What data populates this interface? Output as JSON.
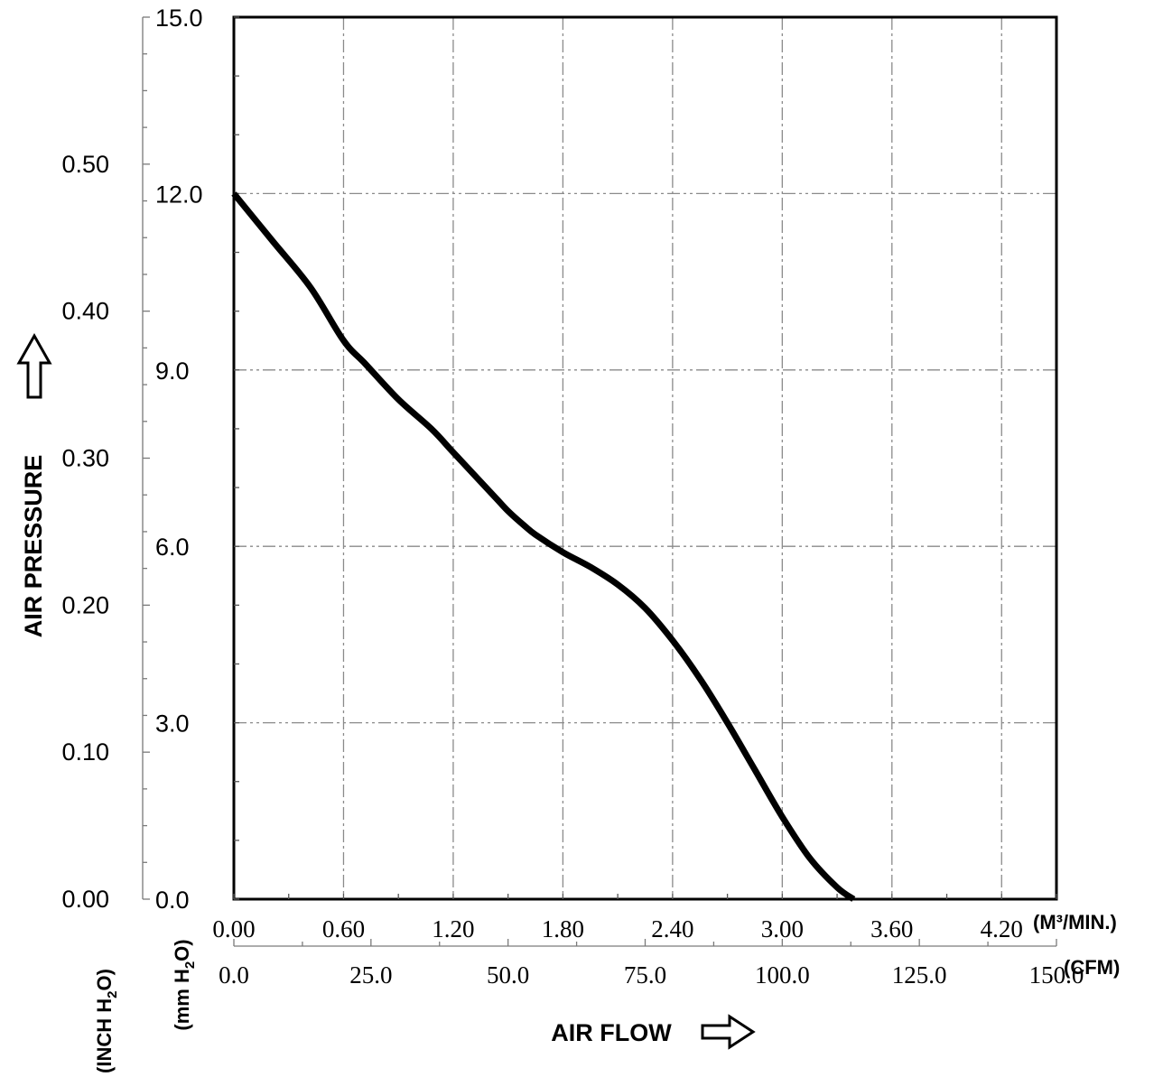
{
  "chart_data": {
    "type": "line",
    "y_axis_mmh2o": {
      "range": [
        0,
        15
      ],
      "ticks": [
        "0.0",
        "3.0",
        "6.0",
        "9.0",
        "12.0",
        "15.0"
      ],
      "unit_label": "mm H",
      "unit_sub": "2",
      "unit_tail": "O)",
      "unit_open": "("
    },
    "y_axis_inh2o": {
      "range": [
        0,
        0.6
      ],
      "ticks": [
        "0.00",
        "0.10",
        "0.20",
        "0.30",
        "0.40",
        "0.50"
      ],
      "unit_label": "INCH H",
      "unit_sub": "2",
      "unit_tail": "O)",
      "unit_open": "("
    },
    "x_axis_m3min": {
      "range": [
        0,
        4.5
      ],
      "ticks": [
        "0.00",
        "0.60",
        "1.20",
        "1.80",
        "2.40",
        "3.00",
        "3.60",
        "4.20"
      ],
      "unit_label": "(M³/MIN.)"
    },
    "x_axis_cfm": {
      "range": [
        0,
        150
      ],
      "ticks": [
        "0.0",
        "25.0",
        "50.0",
        "75.0",
        "100.0",
        "125.0",
        "150.0"
      ],
      "unit_label": "(CFM)"
    },
    "ylabel": "AIR PRESSURE",
    "xlabel": "AIR FLOW",
    "grid": true,
    "series": [
      {
        "x_cfm": [
          0,
          7,
          14,
          20,
          24,
          30,
          36,
          40,
          45,
          48,
          50,
          53,
          55,
          60,
          65,
          70,
          75,
          80,
          85,
          90,
          95,
          100,
          105,
          110,
          113
        ],
        "y_mmh2o": [
          12.0,
          11.2,
          10.4,
          9.5,
          9.1,
          8.5,
          8.0,
          7.6,
          7.1,
          6.8,
          6.6,
          6.35,
          6.2,
          5.9,
          5.65,
          5.35,
          4.95,
          4.4,
          3.75,
          3.0,
          2.2,
          1.4,
          0.7,
          0.2,
          0.0
        ]
      }
    ]
  }
}
